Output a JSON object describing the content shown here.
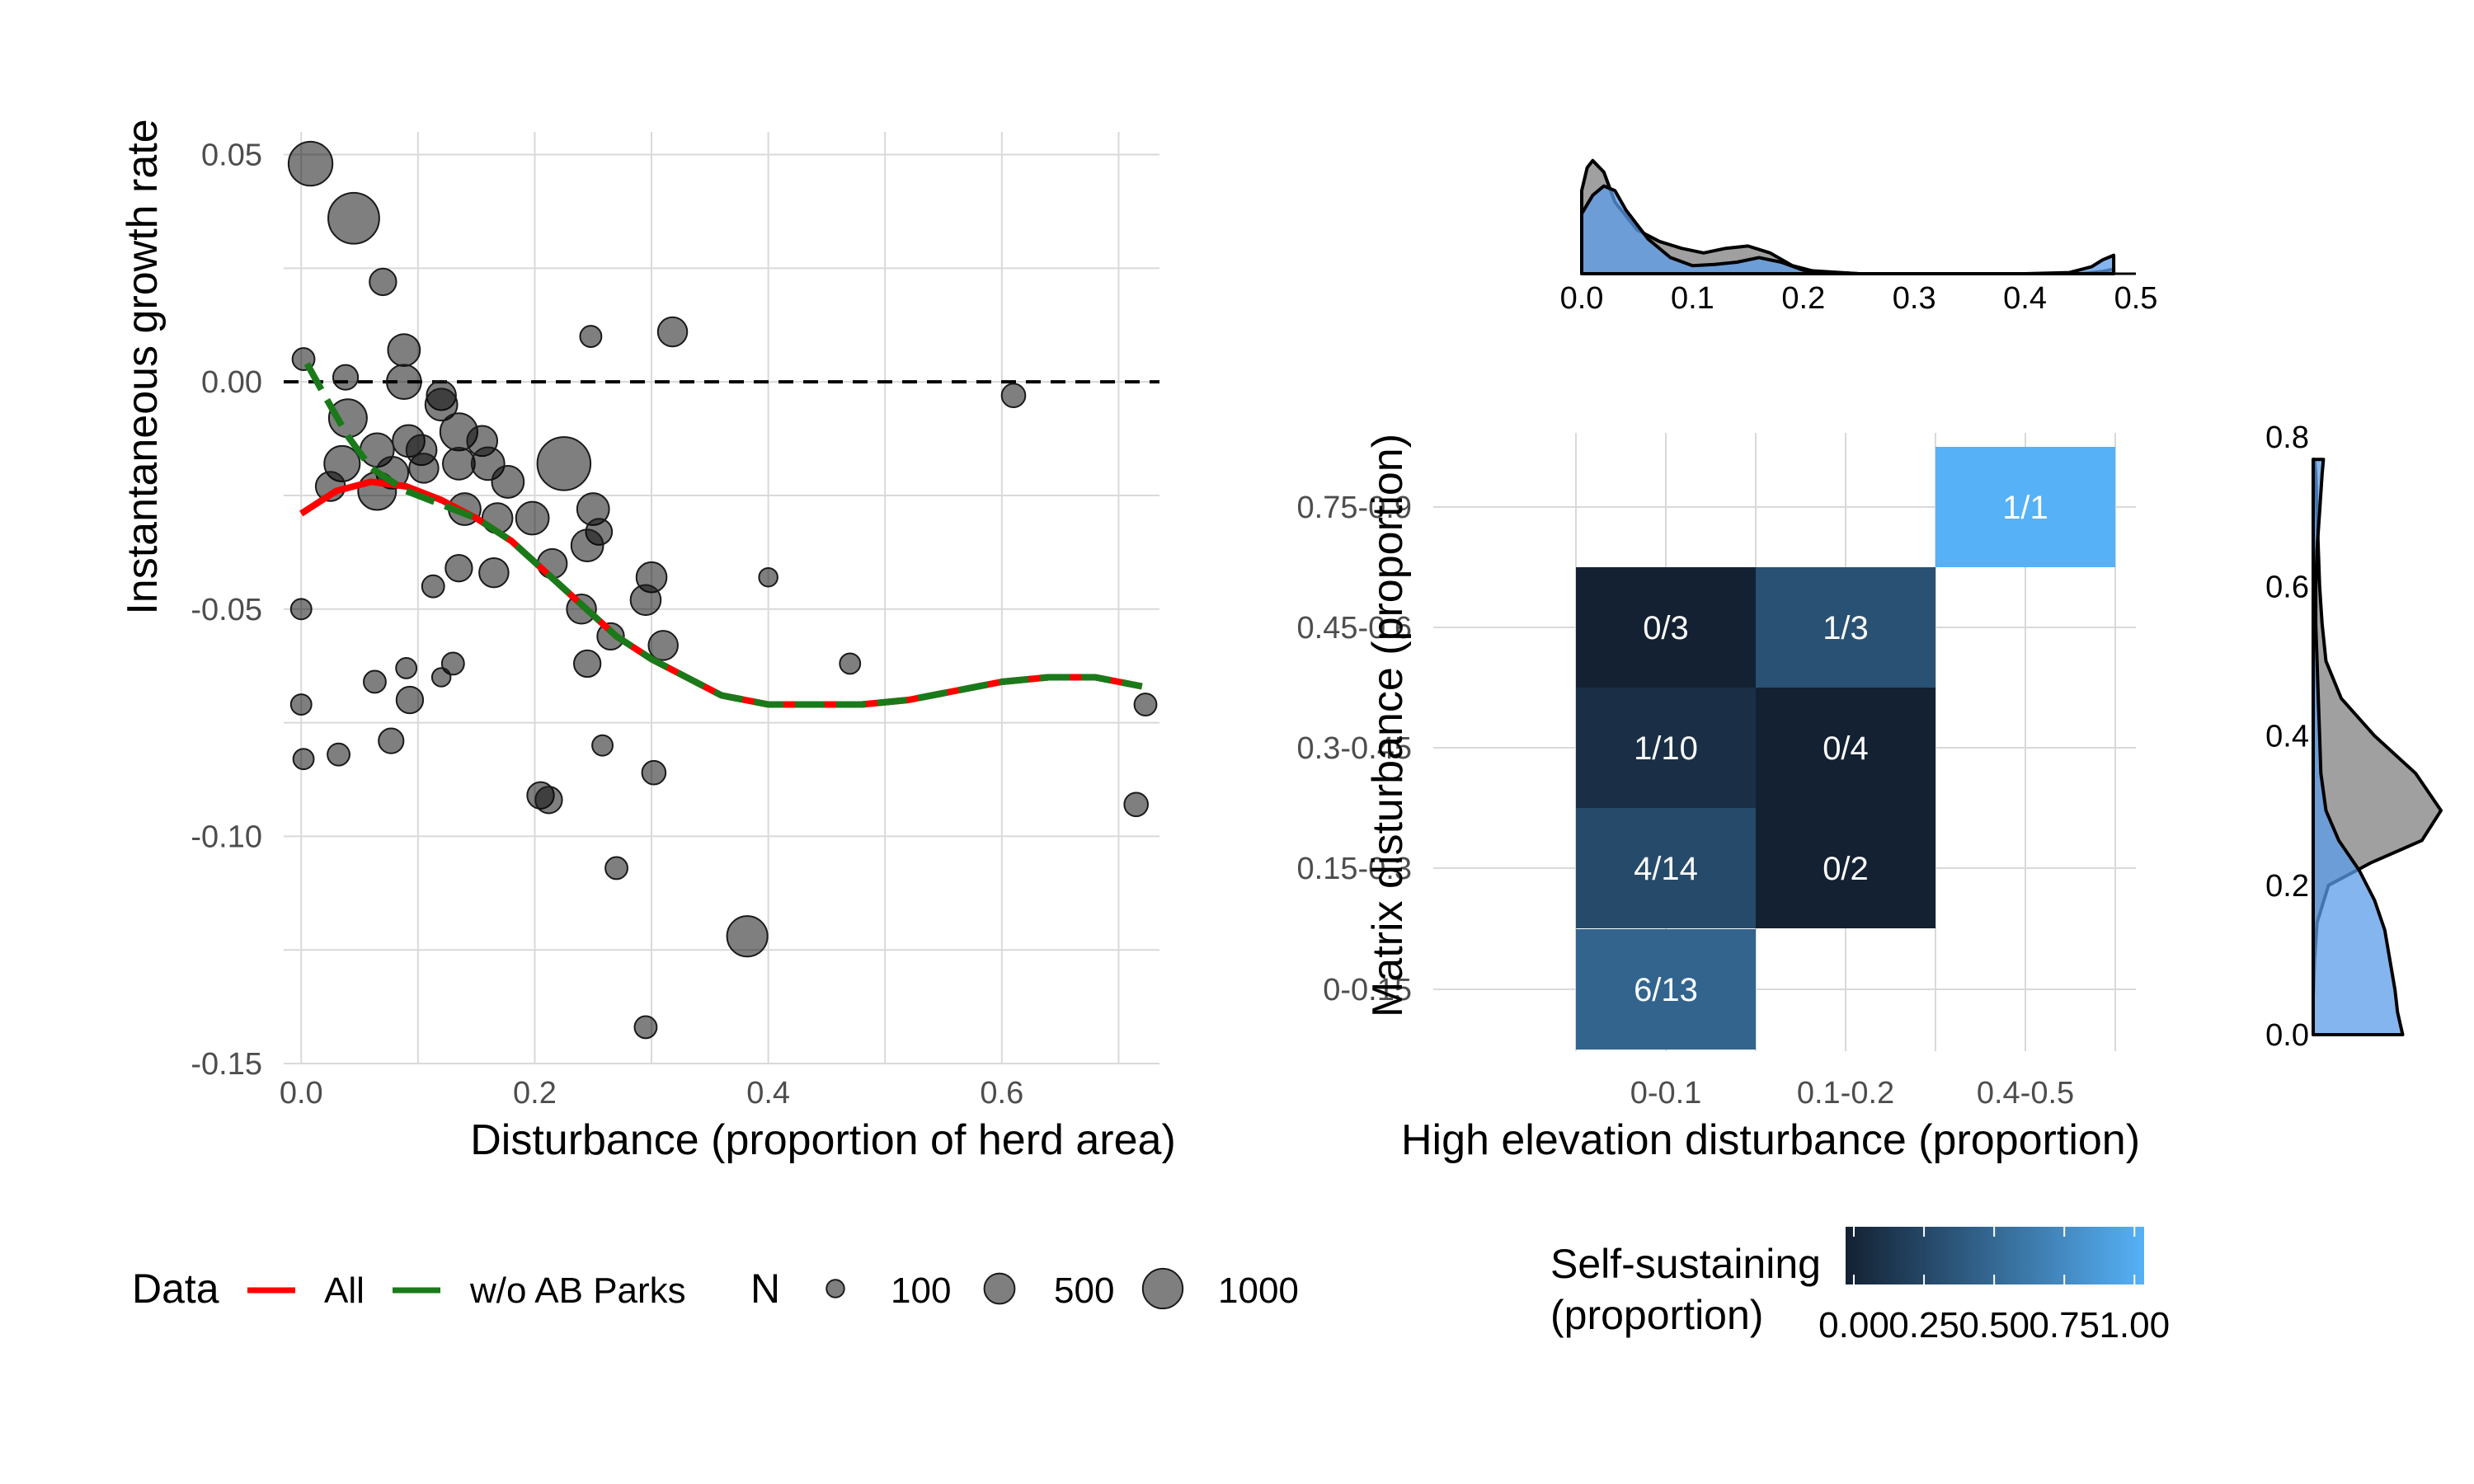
{
  "chart_data": [
    {
      "type": "scatter",
      "xlabel": "Disturbance (proportion of herd area)",
      "ylabel": "Instantaneous growth rate",
      "xlim": [
        -0.015,
        0.735
      ],
      "ylim": [
        -0.15,
        0.055
      ],
      "x_ticks": [
        "0.0",
        "0.2",
        "0.4",
        "0.6"
      ],
      "x_tick_values": [
        0.0,
        0.2,
        0.4,
        0.6
      ],
      "y_ticks": [
        "0.05",
        "0.00",
        "-0.05",
        "-0.10",
        "-0.15"
      ],
      "y_tick_values": [
        0.05,
        0.0,
        -0.05,
        -0.1,
        -0.15
      ],
      "grid": true,
      "reference_line_y": 0.0,
      "points": [
        {
          "x": 0.008,
          "y": 0.048,
          "n": 620
        },
        {
          "x": 0.045,
          "y": 0.036,
          "n": 900
        },
        {
          "x": 0.07,
          "y": 0.022,
          "n": 150
        },
        {
          "x": 0.002,
          "y": 0.005,
          "n": 80
        },
        {
          "x": 0.038,
          "y": 0.001,
          "n": 120
        },
        {
          "x": 0.088,
          "y": 0.007,
          "n": 260
        },
        {
          "x": 0.088,
          "y": 0.0,
          "n": 320
        },
        {
          "x": 0.12,
          "y": -0.003,
          "n": 200
        },
        {
          "x": 0.12,
          "y": -0.005,
          "n": 260
        },
        {
          "x": 0.248,
          "y": 0.01,
          "n": 70
        },
        {
          "x": 0.318,
          "y": 0.011,
          "n": 200
        },
        {
          "x": 0.04,
          "y": -0.008,
          "n": 420
        },
        {
          "x": 0.065,
          "y": -0.015,
          "n": 300
        },
        {
          "x": 0.035,
          "y": -0.018,
          "n": 350
        },
        {
          "x": 0.078,
          "y": -0.02,
          "n": 260
        },
        {
          "x": 0.092,
          "y": -0.013,
          "n": 260
        },
        {
          "x": 0.103,
          "y": -0.015,
          "n": 220
        },
        {
          "x": 0.105,
          "y": -0.019,
          "n": 200
        },
        {
          "x": 0.135,
          "y": -0.011,
          "n": 400
        },
        {
          "x": 0.155,
          "y": -0.013,
          "n": 220
        },
        {
          "x": 0.135,
          "y": -0.018,
          "n": 260
        },
        {
          "x": 0.16,
          "y": -0.018,
          "n": 280
        },
        {
          "x": 0.025,
          "y": -0.023,
          "n": 200
        },
        {
          "x": 0.065,
          "y": -0.024,
          "n": 420
        },
        {
          "x": 0.177,
          "y": -0.022,
          "n": 260
        },
        {
          "x": 0.225,
          "y": -0.018,
          "n": 1000
        },
        {
          "x": 0.14,
          "y": -0.028,
          "n": 260
        },
        {
          "x": 0.168,
          "y": -0.03,
          "n": 220
        },
        {
          "x": 0.198,
          "y": -0.03,
          "n": 280
        },
        {
          "x": 0.25,
          "y": -0.028,
          "n": 260
        },
        {
          "x": 0.255,
          "y": -0.033,
          "n": 140
        },
        {
          "x": 0.245,
          "y": -0.036,
          "n": 260
        },
        {
          "x": 0.135,
          "y": -0.041,
          "n": 150
        },
        {
          "x": 0.165,
          "y": -0.042,
          "n": 200
        },
        {
          "x": 0.215,
          "y": -0.04,
          "n": 200
        },
        {
          "x": 0.113,
          "y": -0.045,
          "n": 80
        },
        {
          "x": 0.3,
          "y": -0.043,
          "n": 220
        },
        {
          "x": 0.295,
          "y": -0.048,
          "n": 220
        },
        {
          "x": 0.4,
          "y": -0.043,
          "n": 40
        },
        {
          "x": 0.24,
          "y": -0.05,
          "n": 200
        },
        {
          "x": 0.265,
          "y": -0.056,
          "n": 150
        },
        {
          "x": 0.31,
          "y": -0.058,
          "n": 200
        },
        {
          "x": 0.0,
          "y": -0.05,
          "n": 60
        },
        {
          "x": 0.245,
          "y": -0.062,
          "n": 150
        },
        {
          "x": 0.47,
          "y": -0.062,
          "n": 60
        },
        {
          "x": 0.13,
          "y": -0.062,
          "n": 80
        },
        {
          "x": 0.09,
          "y": -0.063,
          "n": 60
        },
        {
          "x": 0.12,
          "y": -0.065,
          "n": 40
        },
        {
          "x": 0.063,
          "y": -0.066,
          "n": 80
        },
        {
          "x": 0.0,
          "y": -0.071,
          "n": 60
        },
        {
          "x": 0.093,
          "y": -0.07,
          "n": 150
        },
        {
          "x": 0.077,
          "y": -0.079,
          "n": 120
        },
        {
          "x": 0.032,
          "y": -0.082,
          "n": 80
        },
        {
          "x": 0.002,
          "y": -0.083,
          "n": 60
        },
        {
          "x": 0.258,
          "y": -0.08,
          "n": 60
        },
        {
          "x": 0.723,
          "y": -0.071,
          "n": 80
        },
        {
          "x": 0.302,
          "y": -0.086,
          "n": 100
        },
        {
          "x": 0.205,
          "y": -0.091,
          "n": 150
        },
        {
          "x": 0.212,
          "y": -0.092,
          "n": 150
        },
        {
          "x": 0.715,
          "y": -0.093,
          "n": 100
        },
        {
          "x": 0.27,
          "y": -0.107,
          "n": 80
        },
        {
          "x": 0.382,
          "y": -0.122,
          "n": 500
        },
        {
          "x": 0.295,
          "y": -0.142,
          "n": 80
        },
        {
          "x": 0.61,
          "y": -0.003,
          "n": 100
        }
      ],
      "series": [
        {
          "name": "All",
          "color": "#ff0000",
          "style": "solid",
          "x": [
            0.0,
            0.03,
            0.06,
            0.09,
            0.12,
            0.15,
            0.18,
            0.21,
            0.24,
            0.27,
            0.3,
            0.33,
            0.36,
            0.4,
            0.44,
            0.48,
            0.52,
            0.56,
            0.6,
            0.64,
            0.68,
            0.72
          ],
          "y": [
            -0.029,
            -0.024,
            -0.022,
            -0.023,
            -0.026,
            -0.03,
            -0.035,
            -0.042,
            -0.049,
            -0.056,
            -0.061,
            -0.065,
            -0.069,
            -0.071,
            -0.071,
            -0.071,
            -0.07,
            -0.068,
            -0.066,
            -0.065,
            -0.065,
            -0.067
          ]
        },
        {
          "name": "w/o AB Parks",
          "color": "#1a7a1a",
          "style": "dashed",
          "x": [
            0.005,
            0.02,
            0.04,
            0.06,
            0.09,
            0.12,
            0.15,
            0.18,
            0.21,
            0.24,
            0.27,
            0.3,
            0.33,
            0.36,
            0.4,
            0.44,
            0.48,
            0.52,
            0.56,
            0.6,
            0.64,
            0.68,
            0.72
          ],
          "y": [
            0.004,
            -0.003,
            -0.012,
            -0.019,
            -0.024,
            -0.027,
            -0.03,
            -0.035,
            -0.042,
            -0.049,
            -0.056,
            -0.061,
            -0.065,
            -0.069,
            -0.071,
            -0.071,
            -0.071,
            -0.07,
            -0.068,
            -0.066,
            -0.065,
            -0.065,
            -0.067
          ]
        }
      ],
      "legend": {
        "data_title": "Data",
        "data_items": [
          "All",
          "w/o AB Parks"
        ],
        "size_title": "N",
        "size_items": [
          "100",
          "500",
          "1000"
        ],
        "size_values": [
          100,
          500,
          1000
        ],
        "placement": "bottom"
      }
    },
    {
      "type": "heatmap",
      "xlabel": "High elevation disturbance (proportion)",
      "ylabel": "Matrix disturbance (proportion)",
      "x_categories": [
        "0-0.1",
        "0.1-0.2",
        "0.4-0.5"
      ],
      "y_categories": [
        "0-0.15",
        "0.15-0.3",
        "0.3-0.45",
        "0.45-0.6",
        "0.75-0.9"
      ],
      "cells": [
        {
          "x": "0-0.1",
          "y": "0.45-0.6",
          "label": "0/3",
          "value": 0.0
        },
        {
          "x": "0.1-0.2",
          "y": "0.45-0.6",
          "label": "1/3",
          "value": 0.333
        },
        {
          "x": "0-0.1",
          "y": "0.3-0.45",
          "label": "1/10",
          "value": 0.1
        },
        {
          "x": "0.1-0.2",
          "y": "0.3-0.45",
          "label": "0/4",
          "value": 0.0
        },
        {
          "x": "0-0.1",
          "y": "0.15-0.3",
          "label": "4/14",
          "value": 0.286
        },
        {
          "x": "0.1-0.2",
          "y": "0.15-0.3",
          "label": "0/2",
          "value": 0.0
        },
        {
          "x": "0-0.1",
          "y": "0-0.15",
          "label": "6/13",
          "value": 0.462
        },
        {
          "x": "0.4-0.5",
          "y": "0.75-0.9",
          "label": "1/1",
          "value": 1.0
        }
      ],
      "colorbar": {
        "title_line1": "Self-sustaining",
        "title_line2": "(proportion)",
        "ticks": [
          "0.00",
          "0.25",
          "0.50",
          "0.75",
          "1.00"
        ],
        "low_color": "#132132",
        "high_color": "#56b1f7",
        "placement": "bottom"
      },
      "grid": true
    },
    {
      "type": "area",
      "position": "top-marginal",
      "x_ticks": [
        "0.0",
        "0.1",
        "0.2",
        "0.3",
        "0.4",
        "0.5"
      ],
      "x_tick_values": [
        0.0,
        0.1,
        0.2,
        0.3,
        0.4,
        0.5
      ],
      "xlim": [
        0.0,
        0.5
      ],
      "series": [
        {
          "fill": "#a0a0a0",
          "x": [
            0.0,
            0.005,
            0.01,
            0.02,
            0.03,
            0.05,
            0.07,
            0.09,
            0.11,
            0.13,
            0.15,
            0.17,
            0.19,
            0.21,
            0.25,
            0.3,
            0.4,
            0.45,
            0.47,
            0.48
          ],
          "y": [
            0.72,
            0.92,
            0.98,
            0.88,
            0.62,
            0.38,
            0.28,
            0.22,
            0.18,
            0.22,
            0.24,
            0.18,
            0.07,
            0.02,
            0.0,
            0.0,
            0.0,
            0.0,
            0.02,
            0.04
          ]
        },
        {
          "fill": "#5b9ce8",
          "x": [
            0.0,
            0.01,
            0.02,
            0.03,
            0.04,
            0.06,
            0.08,
            0.1,
            0.12,
            0.14,
            0.16,
            0.18,
            0.2,
            0.25,
            0.3,
            0.4,
            0.44,
            0.46,
            0.47,
            0.48
          ],
          "y": [
            0.52,
            0.68,
            0.76,
            0.72,
            0.55,
            0.3,
            0.14,
            0.07,
            0.08,
            0.1,
            0.14,
            0.1,
            0.03,
            0.0,
            0.0,
            0.0,
            0.01,
            0.06,
            0.12,
            0.16
          ]
        }
      ]
    },
    {
      "type": "area",
      "position": "right-marginal",
      "y_ticks": [
        "0.8",
        "0.6",
        "0.4",
        "0.2",
        "0.0"
      ],
      "y_tick_values": [
        0.8,
        0.6,
        0.4,
        0.2,
        0.0
      ],
      "ylim": [
        0.0,
        0.8
      ],
      "series": [
        {
          "fill": "#a0a0a0",
          "y": [
            0.0,
            0.05,
            0.1,
            0.15,
            0.2,
            0.23,
            0.26,
            0.3,
            0.35,
            0.4,
            0.45,
            0.5,
            0.55,
            0.6,
            0.65,
            0.7,
            0.75,
            0.77
          ],
          "x": [
            0.0,
            0.0,
            0.01,
            0.03,
            0.12,
            0.45,
            0.85,
            1.0,
            0.8,
            0.48,
            0.22,
            0.1,
            0.07,
            0.05,
            0.04,
            0.03,
            0.02,
            0.01
          ]
        },
        {
          "fill": "#5b9ce8",
          "y": [
            0.0,
            0.03,
            0.06,
            0.1,
            0.14,
            0.18,
            0.22,
            0.26,
            0.3,
            0.35,
            0.4,
            0.45,
            0.5,
            0.55,
            0.6,
            0.65,
            0.7,
            0.75,
            0.77
          ],
          "x": [
            0.7,
            0.66,
            0.64,
            0.6,
            0.56,
            0.48,
            0.36,
            0.2,
            0.1,
            0.06,
            0.05,
            0.04,
            0.03,
            0.02,
            0.02,
            0.03,
            0.05,
            0.07,
            0.08
          ]
        }
      ]
    }
  ]
}
